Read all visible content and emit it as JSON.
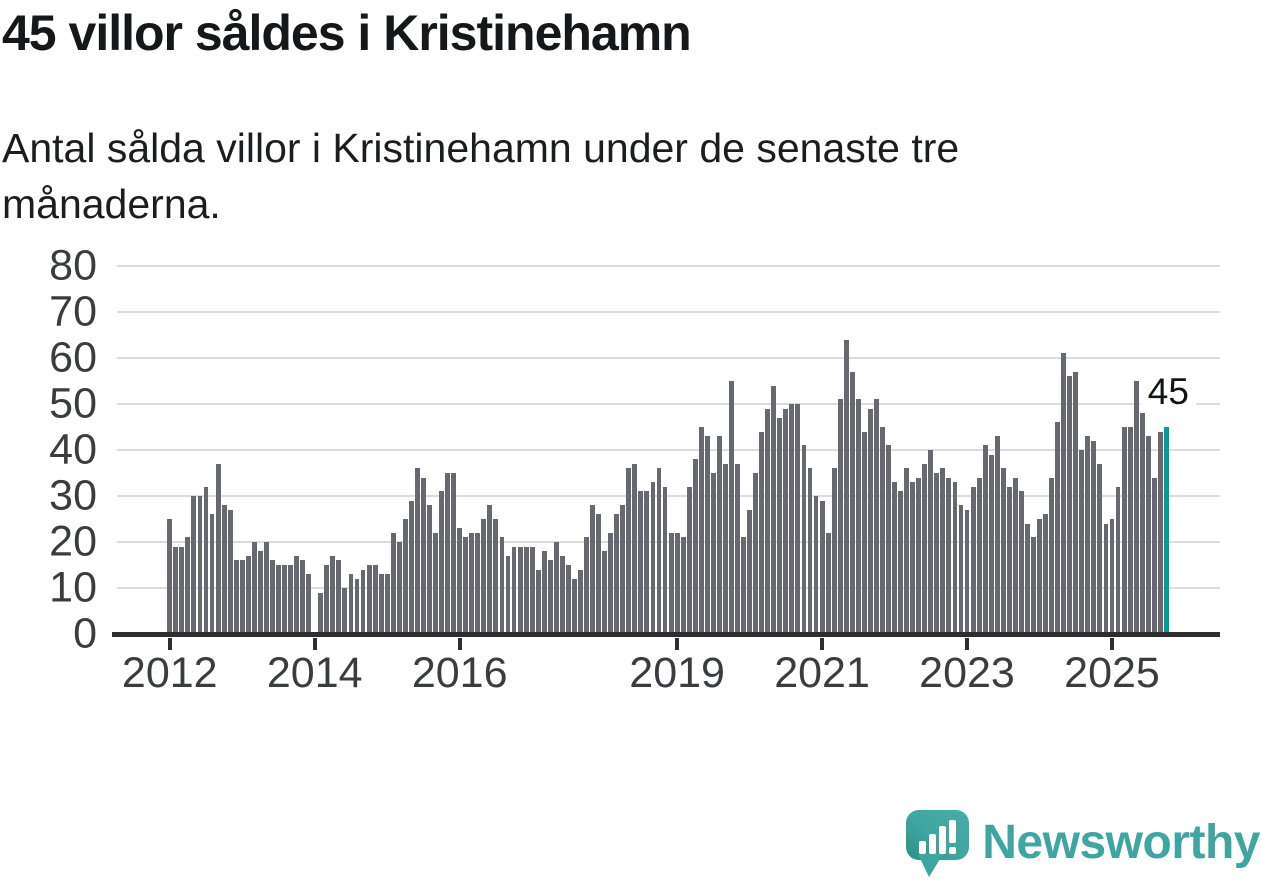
{
  "header": {
    "title": "45 villor såldes i Kristinehamn",
    "subtitle_lines": [
      "Antal sålda villor i Kristinehamn under de senaste tre",
      "månaderna."
    ]
  },
  "chart_data": {
    "type": "bar",
    "title": "45 villor såldes i Kristinehamn",
    "subtitle": "Antal sålda villor i Kristinehamn under de senaste tre månaderna.",
    "xlabel": "",
    "ylabel": "",
    "ylim": [
      0,
      80
    ],
    "y_ticks": [
      0,
      10,
      20,
      30,
      40,
      50,
      60,
      70,
      80
    ],
    "grid": "horizontal",
    "x_ticks": [
      {
        "label": "2012",
        "month_index": 0
      },
      {
        "label": "2014",
        "month_index": 24
      },
      {
        "label": "2016",
        "month_index": 48
      },
      {
        "label": "2019",
        "month_index": 84
      },
      {
        "label": "2021",
        "month_index": 108
      },
      {
        "label": "2023",
        "month_index": 132
      },
      {
        "label": "2025",
        "month_index": 156
      }
    ],
    "start_month": "2012-01",
    "values_by_year": [
      {
        "year": 2012,
        "values": [
          25,
          19,
          19,
          21,
          30,
          30,
          32,
          26,
          37,
          28,
          27,
          16
        ]
      },
      {
        "year": 2013,
        "values": [
          16,
          17,
          20,
          18,
          20,
          16,
          15,
          15,
          15,
          17,
          16,
          13
        ]
      },
      {
        "year": 2014,
        "values": [
          0,
          9,
          15,
          17,
          16,
          10,
          13,
          12,
          14,
          15,
          15,
          13
        ]
      },
      {
        "year": 2015,
        "values": [
          13,
          22,
          20,
          25,
          29,
          36,
          34,
          28,
          22,
          31,
          35,
          35
        ]
      },
      {
        "year": 2016,
        "values": [
          23,
          21,
          22,
          22,
          25,
          28,
          25,
          21,
          17,
          19,
          19,
          19
        ]
      },
      {
        "year": 2017,
        "values": [
          19,
          14,
          18,
          16,
          20,
          17,
          15,
          12,
          14,
          21,
          28,
          26
        ]
      },
      {
        "year": 2018,
        "values": [
          18,
          22,
          26,
          28,
          36,
          37,
          31,
          31,
          33,
          36,
          32,
          22
        ]
      },
      {
        "year": 2019,
        "values": [
          22,
          21,
          32,
          38,
          45,
          43,
          35,
          43,
          37,
          55,
          37,
          21
        ]
      },
      {
        "year": 2020,
        "values": [
          27,
          35,
          44,
          49,
          54,
          47,
          49,
          50,
          50,
          41,
          36,
          30
        ]
      },
      {
        "year": 2021,
        "values": [
          29,
          22,
          36,
          51,
          64,
          57,
          51,
          44,
          49,
          51,
          45,
          41
        ]
      },
      {
        "year": 2022,
        "values": [
          33,
          31,
          36,
          33,
          34,
          37,
          40,
          35,
          36,
          34,
          33,
          28
        ]
      },
      {
        "year": 2023,
        "values": [
          27,
          32,
          34,
          41,
          39,
          43,
          36,
          32,
          34,
          31,
          24,
          21
        ]
      },
      {
        "year": 2024,
        "values": [
          25,
          26,
          34,
          46,
          61,
          56,
          57,
          40,
          43,
          42,
          37,
          24
        ]
      },
      {
        "year": 2025,
        "values": [
          25,
          32,
          45,
          45,
          55,
          48,
          43,
          34,
          44,
          45
        ]
      }
    ],
    "bar_color": "#686870",
    "highlight": {
      "position": "last",
      "value": 45,
      "color": "#009e9b",
      "annotation": "45"
    },
    "legend": null
  },
  "axis_style": {
    "axis_line_color": "#2e2e2e",
    "grid_color": "#dcdcdc",
    "label_color": "#3a3d40"
  },
  "logo": {
    "text": "Newsworthy",
    "color": "#3fa5a0",
    "icon": "newsworthy-speech-bubble-chart-icon"
  }
}
